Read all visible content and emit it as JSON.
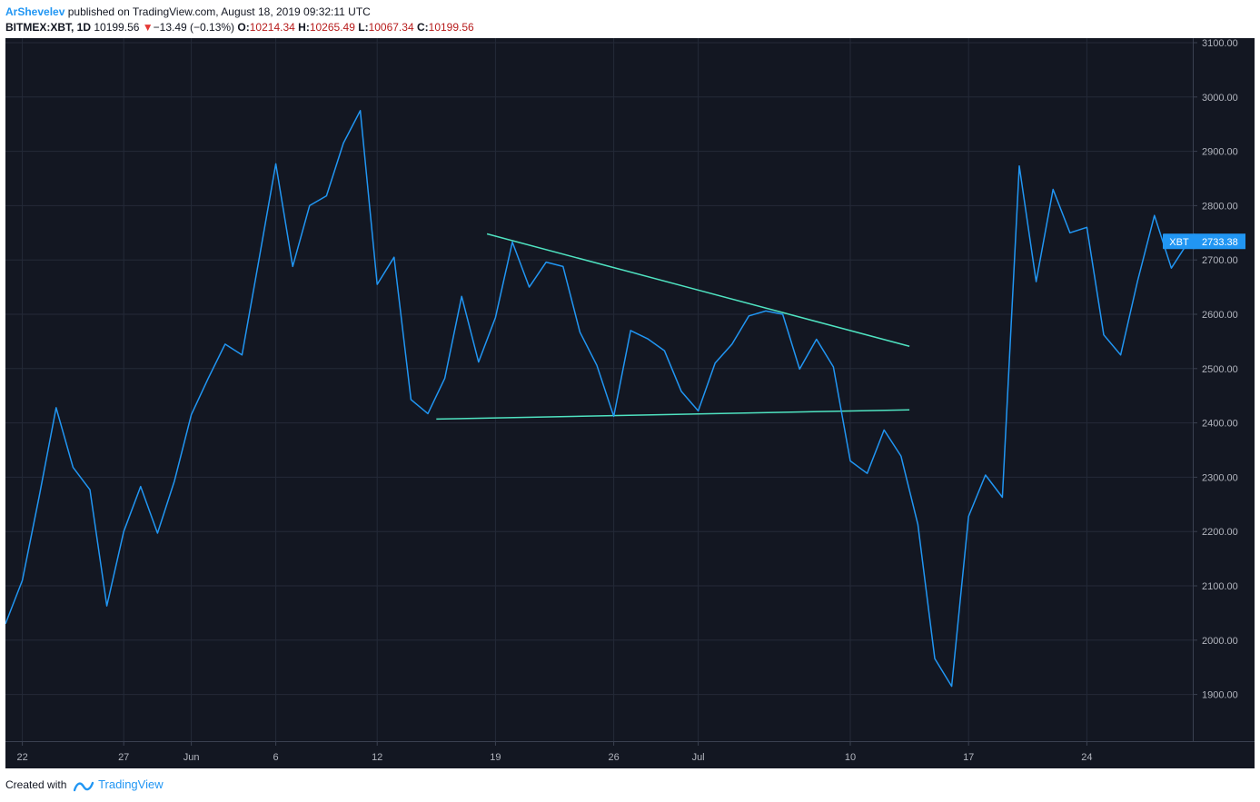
{
  "header": {
    "author": "ArShevelev",
    "published_text": "published on TradingView.com, August 18, 2019 09:32:11 UTC",
    "symbol": "BITMEX:XBT, 1D",
    "last": "10199.56",
    "change_arrow": "▼",
    "change": "−13.49 (−0.13%)",
    "open_label": "O:",
    "open": "10214.34",
    "high_label": "H:",
    "high": "10265.49",
    "low_label": "L:",
    "low": "10067.34",
    "close_label": "C:",
    "close": "10199.56"
  },
  "footer": {
    "created_with": "Created with",
    "brand": "TradingView"
  },
  "colors": {
    "background": "#131722",
    "grid": "#242a38",
    "price_line": "#2196f3",
    "trendline": "#4fe3c1",
    "axis_text": "#b2b5be",
    "badge": "#2196f3"
  },
  "chart_data": {
    "type": "line",
    "series": [
      {
        "name": "XBT",
        "values": [
          2030,
          2110,
          2265,
          2428,
          2318,
          2277,
          2063,
          2200,
          2283,
          2197,
          2293,
          2415,
          2482,
          2545,
          2525,
          2700,
          2877,
          2688,
          2800,
          2818,
          2915,
          2975,
          2655,
          2705,
          2443,
          2417,
          2482,
          2633,
          2512,
          2594,
          2733,
          2650,
          2696,
          2688,
          2567,
          2506,
          2412,
          2570,
          2555,
          2533,
          2458,
          2422,
          2510,
          2545,
          2597,
          2606,
          2600,
          2499,
          2554,
          2503,
          2330,
          2307,
          2387,
          2339,
          2213,
          1966,
          1915,
          2228,
          2304,
          2263,
          2873,
          2660,
          2830,
          2750,
          2760,
          2562,
          2525,
          2661,
          2782,
          2685,
          2733
        ]
      }
    ],
    "x_tick_labels": [
      "22",
      "27",
      "Jun",
      "6",
      "12",
      "19",
      "26",
      "Jul",
      "10",
      "17",
      "24"
    ],
    "y_tick_labels": [
      "1900.00",
      "2000.00",
      "2100.00",
      "2200.00",
      "2300.00",
      "2400.00",
      "2500.00",
      "2600.00",
      "2700.00",
      "2800.00",
      "2900.00",
      "3000.00",
      "3100.00"
    ],
    "ylim": [
      1810,
      3100
    ],
    "grid": true,
    "last_price_badge": {
      "label": "XBT",
      "value": "2733.38"
    },
    "trendlines": [
      {
        "name": "descending resistance",
        "from": [
          28.5,
          2748
        ],
        "to": [
          53.5,
          2541
        ]
      },
      {
        "name": "flat support",
        "from": [
          25.5,
          2407
        ],
        "to": [
          53.5,
          2424
        ]
      }
    ]
  }
}
